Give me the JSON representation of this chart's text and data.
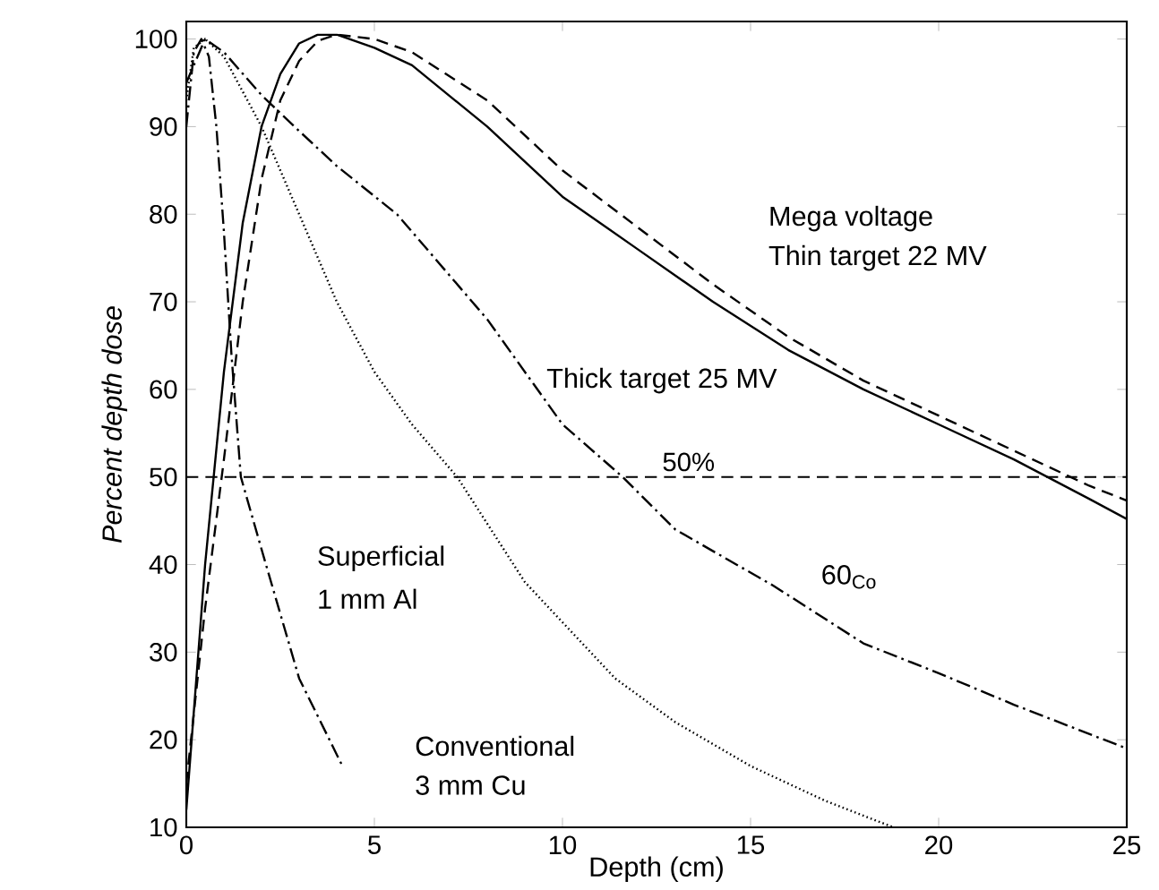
{
  "chart_data": {
    "type": "line",
    "xlabel": "Depth (cm)",
    "ylabel": "Percent depth dose",
    "xlim": [
      0,
      25
    ],
    "ylim": [
      10,
      102
    ],
    "xticks": [
      0,
      5,
      10,
      15,
      20,
      25
    ],
    "yticks": [
      10,
      20,
      30,
      40,
      50,
      60,
      70,
      80,
      90,
      100
    ],
    "grid": false,
    "marker": "none",
    "series": [
      {
        "color": "#000000",
        "line_style": "solid",
        "x": [
          0,
          0.5,
          1,
          1.5,
          2,
          2.5,
          3,
          3.5,
          4,
          5,
          6,
          8,
          10,
          12,
          14,
          16,
          18,
          20,
          22,
          24,
          25
        ],
        "values": [
          12,
          40,
          62,
          79,
          90,
          96,
          99.5,
          100.5,
          100.5,
          99,
          97,
          90,
          82,
          76,
          70,
          64.5,
          60,
          56,
          52,
          47.5,
          45.2
        ]
      },
      {
        "color": "#000000",
        "line_style": "dashed",
        "x": [
          0,
          0.5,
          1,
          1.5,
          2,
          2.5,
          3,
          3.5,
          4,
          5,
          6,
          8,
          10,
          12,
          14,
          16,
          18,
          20,
          22,
          24,
          25
        ],
        "values": [
          15,
          35,
          52,
          70,
          84,
          93,
          97.5,
          99.8,
          100.5,
          100,
          98.5,
          93,
          85,
          78.5,
          72,
          66,
          61,
          57,
          53,
          49,
          47.3
        ]
      },
      {
        "color": "#000000",
        "line_style": "dashdot",
        "x": [
          0,
          0.5,
          1,
          2,
          3,
          4,
          5.6,
          8,
          10,
          11.6,
          13,
          15.6,
          18,
          20,
          22,
          25
        ],
        "values": [
          95,
          100,
          98.5,
          93.6,
          89.5,
          85.5,
          80,
          68,
          56,
          50,
          44,
          37.6,
          31,
          27.6,
          24,
          19
        ]
      },
      {
        "color": "#000000",
        "line_style": "dotted",
        "x": [
          0,
          0.2,
          0.5,
          1,
          2,
          3,
          4,
          5,
          6,
          7.2,
          9,
          11.4,
          13,
          15,
          17,
          18.8
        ],
        "values": [
          93,
          99,
          100,
          98,
          90,
          80,
          70,
          62,
          56,
          50,
          38,
          27,
          22,
          17,
          13,
          10
        ]
      },
      {
        "color": "#000000",
        "line_style": "dashdot",
        "x": [
          0,
          0.2,
          0.4,
          0.6,
          0.8,
          1,
          1.2,
          1.45,
          2.07,
          3,
          4.15
        ],
        "values": [
          90,
          98.5,
          100,
          98,
          90,
          78,
          64,
          50,
          40.7,
          27,
          17
        ]
      }
    ],
    "ref_lines": [
      {
        "axis": "y",
        "value": 50,
        "label": "50%",
        "line_style": "dashed",
        "color": "#000000"
      }
    ],
    "annotations": [
      "Mega voltage",
      "Thin target 22 MV",
      "Thick target 25 MV",
      "60$_{Co}$",
      "Superficial",
      "1 mm Al",
      "Conventional",
      "3 mm Cu"
    ]
  }
}
